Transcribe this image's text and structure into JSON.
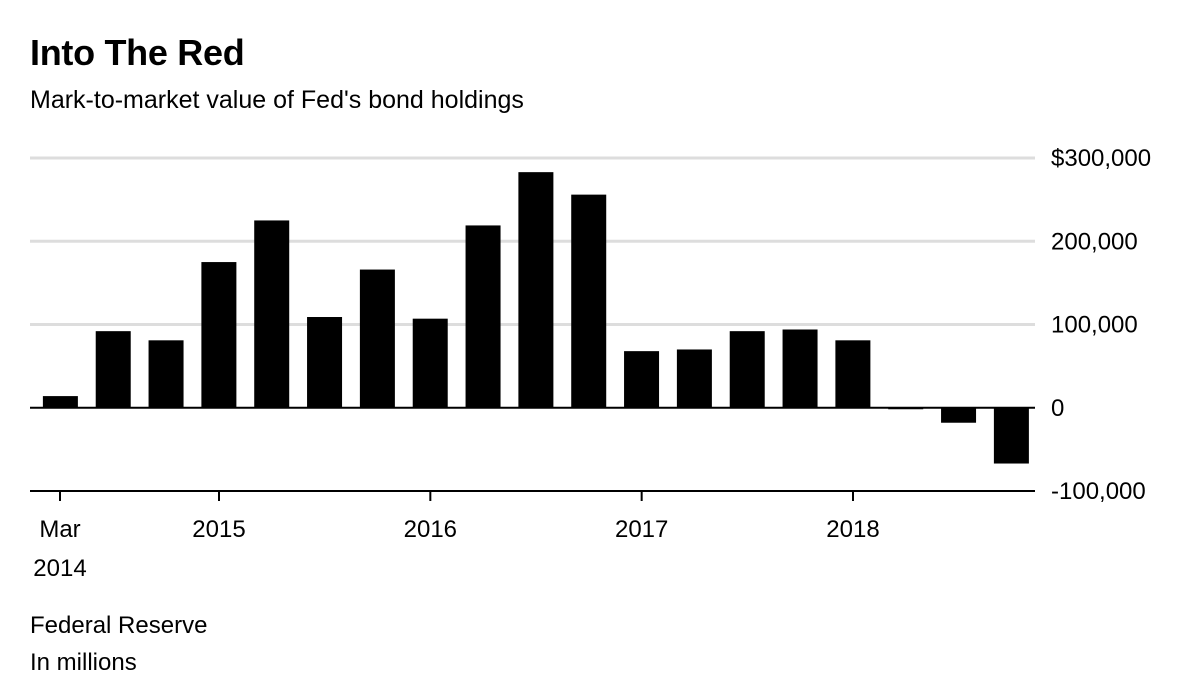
{
  "chart_data": {
    "type": "bar",
    "title": "Into The Red",
    "subtitle": "Mark-to-market value of Fed's bond holdings",
    "source": "Federal Reserve",
    "units_note": "In millions",
    "x_ticks": [
      {
        "lines": [
          "Mar",
          "2014"
        ],
        "date": "2014-03"
      },
      {
        "lines": [
          "2015"
        ],
        "date": "2015-01"
      },
      {
        "lines": [
          "2016"
        ],
        "date": "2016-01"
      },
      {
        "lines": [
          "2017"
        ],
        "date": "2017-01"
      },
      {
        "lines": [
          "2018"
        ],
        "date": "2018-01"
      }
    ],
    "y_ticks": [
      {
        "value": 300000,
        "label": "$300,000"
      },
      {
        "value": 200000,
        "label": "200,000"
      },
      {
        "value": 100000,
        "label": "100,000"
      },
      {
        "value": 0,
        "label": "0"
      },
      {
        "value": -100000,
        "label": "-100,000"
      }
    ],
    "ylim": [
      -100000,
      300000
    ],
    "grid": true,
    "bar_color": "#000000",
    "grid_color": "#dddddd",
    "series": [
      {
        "dates": [
          "2014-03",
          "2014-06",
          "2014-09",
          "2014-12",
          "2015-03",
          "2015-06",
          "2015-09",
          "2015-12",
          "2016-03",
          "2016-06",
          "2016-09",
          "2016-12",
          "2017-03",
          "2017-06",
          "2017-09",
          "2017-12",
          "2018-03",
          "2018-06",
          "2018-09"
        ],
        "values": [
          14000,
          92000,
          81000,
          175000,
          225000,
          109000,
          166000,
          107000,
          219000,
          283000,
          256000,
          68000,
          70000,
          92000,
          94000,
          81000,
          -1000,
          -18000,
          -67000
        ]
      }
    ]
  }
}
